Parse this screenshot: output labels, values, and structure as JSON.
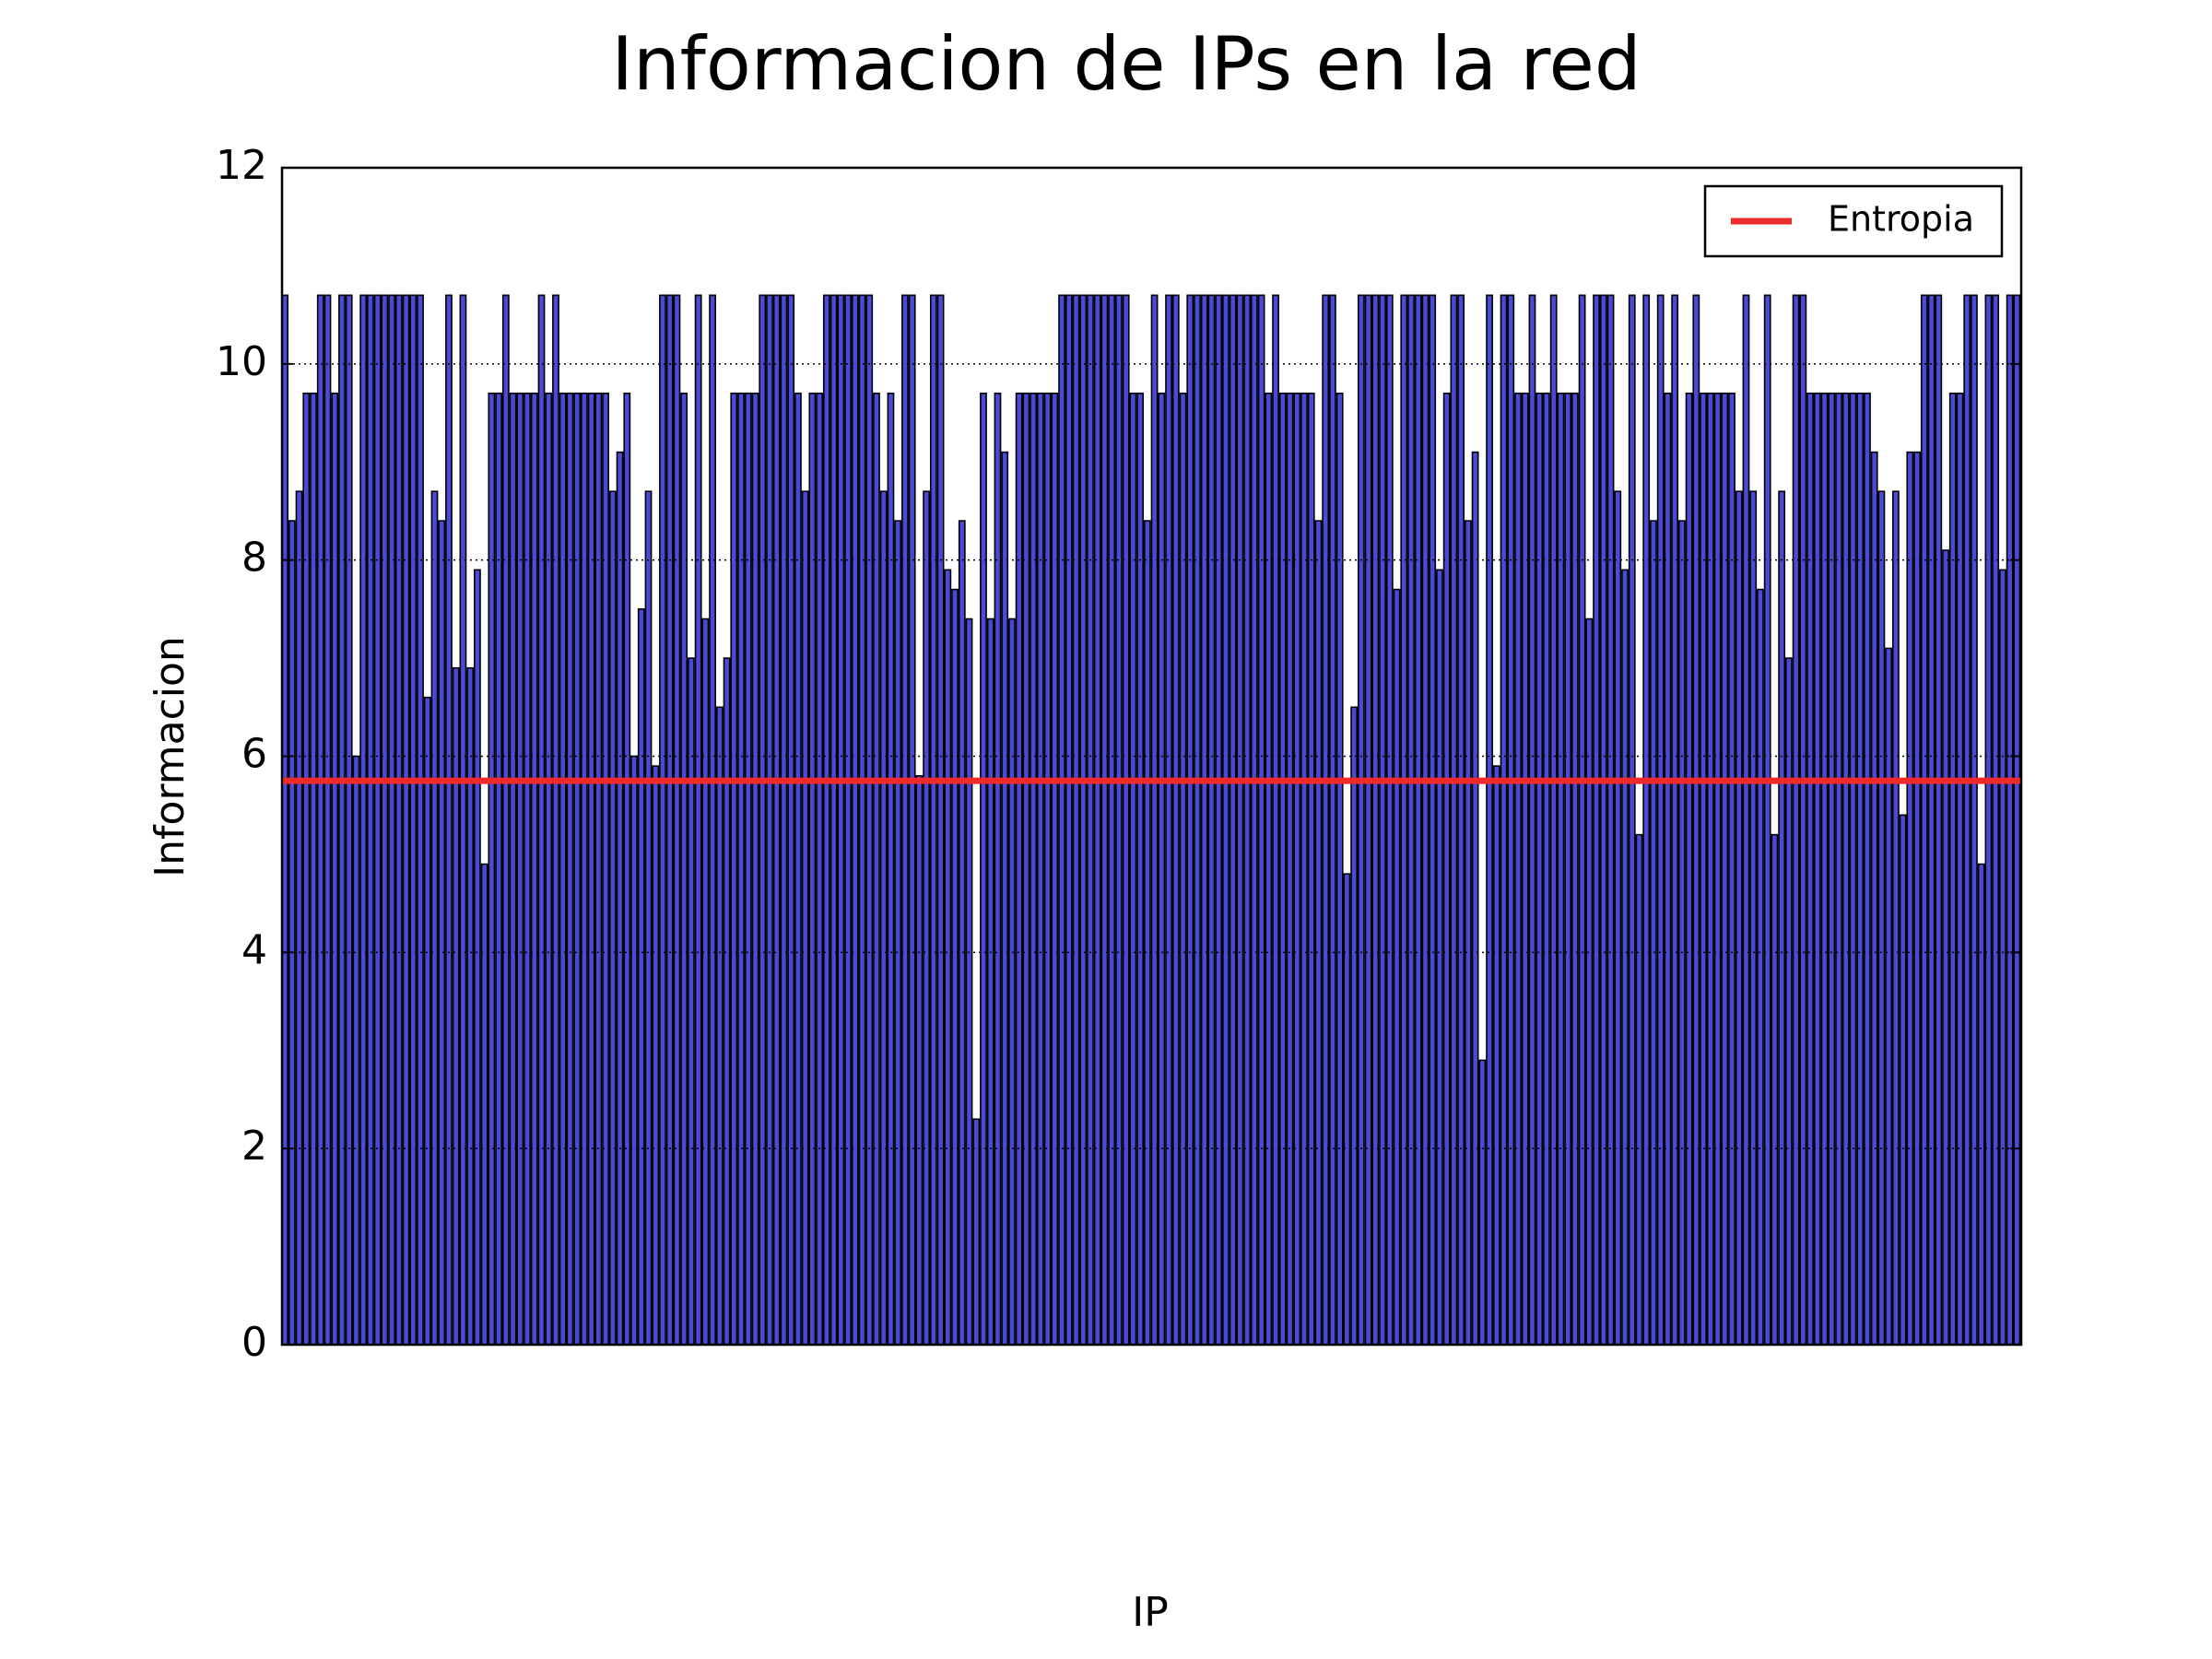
{
  "chart_data": {
    "type": "bar",
    "title": "Informacion de IPs en la red",
    "xlabel": "IP",
    "ylabel": "Informacion",
    "categories": [
      null,
      null,
      null,
      null,
      null,
      null,
      null,
      null,
      null,
      null,
      null,
      null,
      null,
      null,
      null,
      null,
      null,
      null,
      null,
      null,
      null,
      null,
      null,
      null,
      null,
      null,
      null,
      null,
      null,
      null,
      null,
      null,
      null,
      null,
      null,
      null,
      null,
      null,
      null,
      null,
      null,
      null,
      null,
      null,
      null,
      null,
      null,
      null,
      null,
      null,
      null,
      null,
      null,
      null,
      null,
      null,
      null,
      null,
      null,
      null,
      null,
      null,
      null,
      null,
      null,
      null,
      null,
      null,
      null,
      null,
      null,
      null,
      null,
      null,
      null,
      null,
      null,
      null,
      null,
      null,
      null,
      null,
      null,
      null,
      null,
      null,
      null,
      null,
      null,
      null,
      null,
      null,
      null,
      null,
      null,
      null,
      null,
      null,
      null,
      null,
      null,
      null,
      null,
      null,
      null,
      null,
      null,
      null,
      null,
      null,
      null,
      null,
      null,
      null,
      null,
      null,
      null,
      null,
      null,
      null,
      null,
      null,
      null,
      null,
      null,
      null,
      null,
      null,
      null,
      null,
      null,
      null,
      null,
      null,
      null,
      null,
      null,
      null,
      null,
      null,
      null,
      null,
      null,
      null,
      null,
      null,
      null,
      null,
      null,
      null,
      null,
      null,
      null,
      null,
      null,
      null,
      null,
      null,
      null,
      null,
      null,
      null,
      null,
      null,
      null,
      null,
      null,
      null,
      null,
      null,
      null,
      null,
      null,
      null,
      null,
      null,
      null,
      null,
      null,
      null,
      null,
      null,
      null,
      null,
      null,
      null,
      null,
      null,
      null,
      null,
      null,
      null,
      null,
      null,
      null,
      null,
      null,
      null,
      null,
      null,
      null,
      null,
      null,
      null,
      null,
      null,
      null,
      null,
      null,
      null,
      null,
      null,
      null,
      null,
      null,
      null,
      null,
      null,
      null,
      null,
      null,
      null,
      null,
      null,
      null,
      null,
      null,
      null,
      null,
      null,
      null,
      null,
      null,
      null,
      null,
      null,
      null,
      null,
      null,
      null,
      null,
      null,
      null,
      null
    ],
    "values": [
      10.7,
      8.4,
      8.7,
      9.7,
      9.7,
      10.7,
      10.7,
      9.7,
      10.7,
      10.7,
      6.0,
      10.7,
      10.7,
      10.7,
      10.7,
      10.7,
      10.7,
      10.7,
      10.7,
      10.7,
      6.6,
      8.7,
      8.4,
      10.7,
      6.9,
      10.7,
      6.9,
      7.9,
      4.9,
      9.7,
      9.7,
      10.7,
      9.7,
      9.7,
      9.7,
      9.7,
      10.7,
      9.7,
      10.7,
      9.7,
      9.7,
      9.7,
      9.7,
      9.7,
      9.7,
      9.7,
      8.7,
      9.1,
      9.7,
      6.0,
      7.5,
      8.7,
      5.9,
      10.7,
      10.7,
      10.7,
      9.7,
      7.0,
      10.7,
      7.4,
      10.7,
      6.5,
      7.0,
      9.7,
      9.7,
      9.7,
      9.7,
      10.7,
      10.7,
      10.7,
      10.7,
      10.7,
      9.7,
      8.7,
      9.7,
      9.7,
      10.7,
      10.7,
      10.7,
      10.7,
      10.7,
      10.7,
      10.7,
      9.7,
      8.7,
      9.7,
      8.4,
      10.7,
      10.7,
      5.8,
      8.7,
      10.7,
      10.7,
      7.9,
      7.7,
      8.4,
      7.4,
      2.3,
      9.7,
      7.4,
      9.7,
      9.1,
      7.4,
      9.7,
      9.7,
      9.7,
      9.7,
      9.7,
      9.7,
      10.7,
      10.7,
      10.7,
      10.7,
      10.7,
      10.7,
      10.7,
      10.7,
      10.7,
      10.7,
      9.7,
      9.7,
      8.4,
      10.7,
      9.7,
      10.7,
      10.7,
      9.7,
      10.7,
      10.7,
      10.7,
      10.7,
      10.7,
      10.7,
      10.7,
      10.7,
      10.7,
      10.7,
      10.7,
      9.7,
      10.7,
      9.7,
      9.7,
      9.7,
      9.7,
      9.7,
      8.4,
      10.7,
      10.7,
      9.7,
      4.8,
      6.5,
      10.7,
      10.7,
      10.7,
      10.7,
      10.7,
      7.7,
      10.7,
      10.7,
      10.7,
      10.7,
      10.7,
      7.9,
      9.7,
      10.7,
      10.7,
      8.4,
      9.1,
      2.9,
      10.7,
      5.9,
      10.7,
      10.7,
      9.7,
      9.7,
      10.7,
      9.7,
      9.7,
      10.7,
      9.7,
      9.7,
      9.7,
      10.7,
      7.4,
      10.7,
      10.7,
      10.7,
      8.7,
      7.9,
      10.7,
      5.2,
      10.7,
      8.4,
      10.7,
      9.7,
      10.7,
      8.4,
      9.7,
      10.7,
      9.7,
      9.7,
      9.7,
      9.7,
      9.7,
      8.7,
      10.7,
      8.7,
      7.7,
      10.7,
      5.2,
      8.7,
      7.0,
      10.7,
      10.7,
      9.7,
      9.7,
      9.7,
      9.7,
      9.7,
      9.7,
      9.7,
      9.7,
      9.7,
      9.1,
      8.7,
      7.1,
      8.7,
      5.4,
      9.1,
      9.1,
      10.7,
      10.7,
      10.7,
      8.1,
      9.7,
      9.7,
      10.7,
      10.7,
      4.9,
      10.7,
      10.7,
      7.9,
      10.7,
      10.7
    ],
    "color": "#4a4ad8",
    "edgecolor": "#000000",
    "lines": [
      {
        "name": "Entropia",
        "value": 5.75,
        "color": "#f02a2a"
      }
    ],
    "ylim": [
      0,
      12
    ],
    "yticks": [
      0,
      2,
      4,
      6,
      8,
      10,
      12
    ],
    "grid": true,
    "legend": "upper right"
  }
}
